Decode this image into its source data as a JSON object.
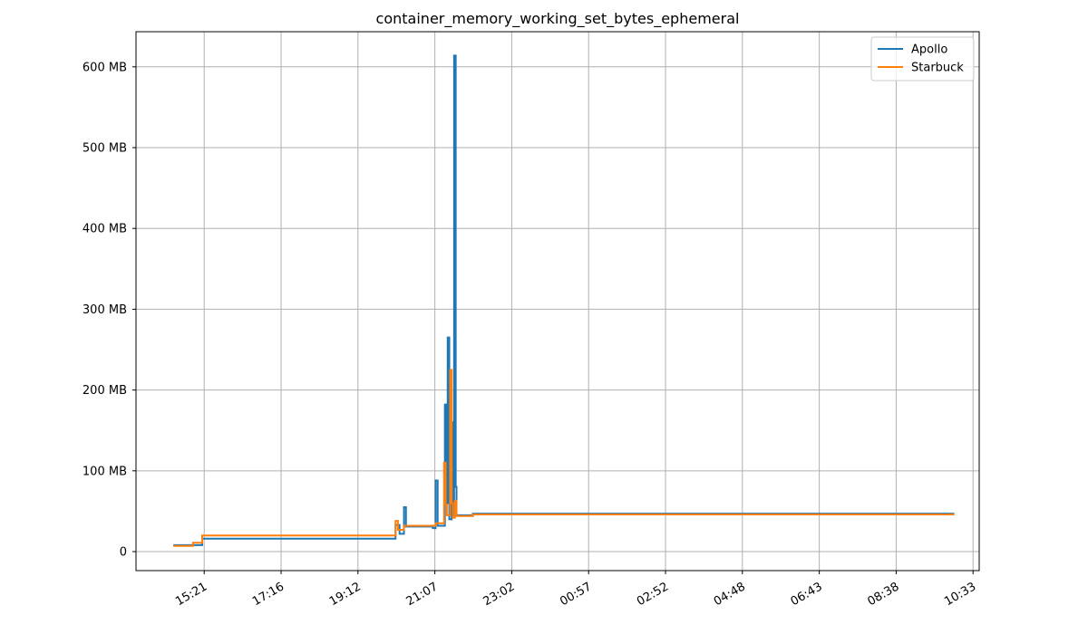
{
  "chart_data": {
    "type": "line",
    "title": "container_memory_working_set_bytes_ephemeral",
    "xlabel": "",
    "ylabel": "",
    "x_unit": "clock time",
    "x_ticks": [
      "15:21",
      "17:16",
      "19:12",
      "21:07",
      "23:02",
      "00:57",
      "02:52",
      "04:48",
      "06:43",
      "08:38",
      "10:33"
    ],
    "x_range_hours": [
      13.65,
      34.67
    ],
    "y_unit": "MB",
    "y_ticks": [
      {
        "value": 0,
        "label": "0"
      },
      {
        "value": 100,
        "label": "100 MB"
      },
      {
        "value": 200,
        "label": "200 MB"
      },
      {
        "value": 300,
        "label": "300 MB"
      },
      {
        "value": 400,
        "label": "400 MB"
      },
      {
        "value": 500,
        "label": "500 MB"
      },
      {
        "value": 600,
        "label": "600 MB"
      }
    ],
    "ylim": [
      -23.5,
      643.5
    ],
    "grid": true,
    "legend_position": "top-right",
    "series": [
      {
        "name": "Apollo",
        "color": "#1f77b4",
        "points": [
          [
            14.58,
            8
          ],
          [
            15.12,
            8
          ],
          [
            15.3,
            8
          ],
          [
            15.3,
            16
          ],
          [
            20.12,
            16
          ],
          [
            20.12,
            33
          ],
          [
            20.22,
            33
          ],
          [
            20.22,
            22
          ],
          [
            20.33,
            22
          ],
          [
            20.33,
            55
          ],
          [
            20.38,
            55
          ],
          [
            20.38,
            31
          ],
          [
            21.05,
            31
          ],
          [
            21.05,
            29
          ],
          [
            21.12,
            29
          ],
          [
            21.12,
            88
          ],
          [
            21.17,
            88
          ],
          [
            21.17,
            32
          ],
          [
            21.35,
            32
          ],
          [
            21.35,
            182
          ],
          [
            21.38,
            182
          ],
          [
            21.38,
            60
          ],
          [
            21.42,
            60
          ],
          [
            21.42,
            265
          ],
          [
            21.46,
            265
          ],
          [
            21.46,
            40
          ],
          [
            21.52,
            40
          ],
          [
            21.52,
            160
          ],
          [
            21.55,
            160
          ],
          [
            21.55,
            45
          ],
          [
            21.58,
            45
          ],
          [
            21.58,
            614
          ],
          [
            21.62,
            614
          ],
          [
            21.62,
            80
          ],
          [
            21.64,
            80
          ],
          [
            21.64,
            45
          ],
          [
            22.05,
            45
          ],
          [
            22.05,
            47
          ],
          [
            34.05,
            47
          ]
        ]
      },
      {
        "name": "Starbuck",
        "color": "#ff7f0e",
        "points": [
          [
            14.58,
            7
          ],
          [
            15.07,
            7
          ],
          [
            15.07,
            11
          ],
          [
            15.3,
            11
          ],
          [
            15.3,
            20
          ],
          [
            20.12,
            20
          ],
          [
            20.12,
            38
          ],
          [
            20.18,
            38
          ],
          [
            20.18,
            27
          ],
          [
            20.33,
            27
          ],
          [
            20.33,
            32
          ],
          [
            21.12,
            32
          ],
          [
            21.12,
            35
          ],
          [
            21.33,
            35
          ],
          [
            21.33,
            110
          ],
          [
            21.37,
            110
          ],
          [
            21.37,
            58
          ],
          [
            21.4,
            58
          ],
          [
            21.4,
            45
          ],
          [
            21.48,
            45
          ],
          [
            21.48,
            225
          ],
          [
            21.52,
            225
          ],
          [
            21.52,
            60
          ],
          [
            21.55,
            60
          ],
          [
            21.55,
            42
          ],
          [
            21.6,
            42
          ],
          [
            21.6,
            63
          ],
          [
            21.64,
            63
          ],
          [
            21.64,
            44
          ],
          [
            22.05,
            44
          ],
          [
            22.05,
            46
          ],
          [
            34.05,
            46
          ]
        ]
      }
    ]
  },
  "colors": {
    "grid": "#b0b0b0",
    "axis": "#000000",
    "legend_border": "#cccccc"
  }
}
